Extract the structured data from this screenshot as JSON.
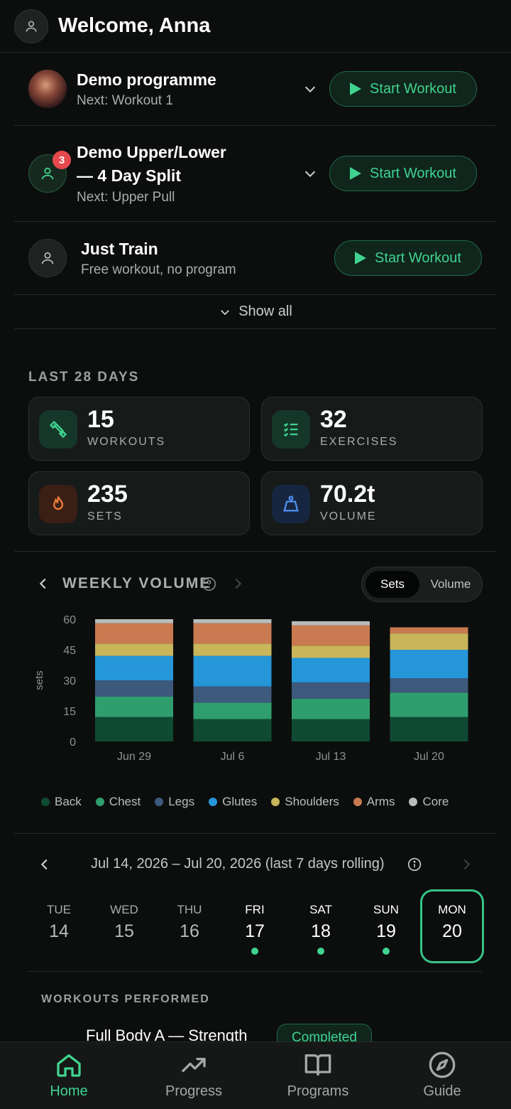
{
  "header": {
    "title": "Welcome, Anna",
    "avatar_icon": "user-icon"
  },
  "programs": [
    {
      "name_line1": "Demo programme",
      "name_line2": "",
      "next": "Next: Workout 1",
      "start_label": "Start Workout",
      "badge": ""
    },
    {
      "name_line1": "Demo Upper/Lower",
      "name_line2": "— 4 Day Split",
      "next": "Next: Upper Pull",
      "start_label": "Start Workout",
      "badge": "3"
    },
    {
      "name_line1": "Just Train",
      "name_line2": "",
      "next": "Free workout, no program",
      "start_label": "Start Workout",
      "badge": ""
    }
  ],
  "show_all": "Show all",
  "stats": {
    "section_label": "LAST 28 DAYS",
    "workouts": {
      "value": "15",
      "label": "WORKOUTS"
    },
    "exercises": {
      "value": "32",
      "label": "EXERCISES"
    },
    "sets": {
      "value": "235",
      "label": "SETS"
    },
    "volume": {
      "value": "70.2t",
      "label": "VOLUME"
    }
  },
  "weekly": {
    "title": "WEEKLY VOLUME",
    "toggle": {
      "selected": "Sets",
      "other": "Volume"
    }
  },
  "chart_data": {
    "type": "bar",
    "stacked": true,
    "categories": [
      "Jun 29",
      "Jul 6",
      "Jul 13",
      "Jul 20"
    ],
    "ylabel": "sets",
    "ylim": [
      0,
      60
    ],
    "yticks": [
      0,
      15,
      30,
      45,
      60
    ],
    "series": [
      {
        "name": "Back",
        "color": "#0f4a33",
        "values": [
          12,
          11,
          11,
          12
        ]
      },
      {
        "name": "Chest",
        "color": "#2f9e6e",
        "values": [
          10,
          8,
          10,
          12
        ]
      },
      {
        "name": "Legs",
        "color": "#3d5a7c",
        "values": [
          8,
          8,
          8,
          7
        ]
      },
      {
        "name": "Glutes",
        "color": "#2596d8",
        "values": [
          12,
          15,
          12,
          14
        ]
      },
      {
        "name": "Shoulders",
        "color": "#c9b55a",
        "values": [
          6,
          6,
          6,
          8
        ]
      },
      {
        "name": "Arms",
        "color": "#c97a50",
        "values": [
          10,
          10,
          10,
          3
        ]
      },
      {
        "name": "Core",
        "color": "#b8bcba",
        "values": [
          2,
          2,
          2,
          0
        ]
      }
    ]
  },
  "range": {
    "text": "Jul 14, 2026 – Jul 20, 2026 (last 7 days rolling)"
  },
  "days": [
    {
      "name": "TUE",
      "num": "14",
      "active": false,
      "marker": false,
      "selected": false
    },
    {
      "name": "WED",
      "num": "15",
      "active": false,
      "marker": false,
      "selected": false
    },
    {
      "name": "THU",
      "num": "16",
      "active": false,
      "marker": false,
      "selected": false
    },
    {
      "name": "FRI",
      "num": "17",
      "active": true,
      "marker": true,
      "selected": false
    },
    {
      "name": "SAT",
      "num": "18",
      "active": true,
      "marker": true,
      "selected": false
    },
    {
      "name": "SUN",
      "num": "19",
      "active": true,
      "marker": true,
      "selected": false
    },
    {
      "name": "MON",
      "num": "20",
      "active": true,
      "marker": false,
      "selected": true
    }
  ],
  "performed": {
    "label": "WORKOUTS PERFORMED",
    "workout_title": "Full Body A — Strength",
    "status": "Completed"
  },
  "nav": [
    {
      "label": "Home",
      "icon": "home-icon",
      "active": true
    },
    {
      "label": "Progress",
      "icon": "trend-icon",
      "active": false
    },
    {
      "label": "Programs",
      "icon": "book-icon",
      "active": false
    },
    {
      "label": "Guide",
      "icon": "compass-icon",
      "active": false
    }
  ],
  "colors": {
    "accent": "#3fd38f",
    "background": "#0c0e0d",
    "badge": "#e5484d"
  }
}
